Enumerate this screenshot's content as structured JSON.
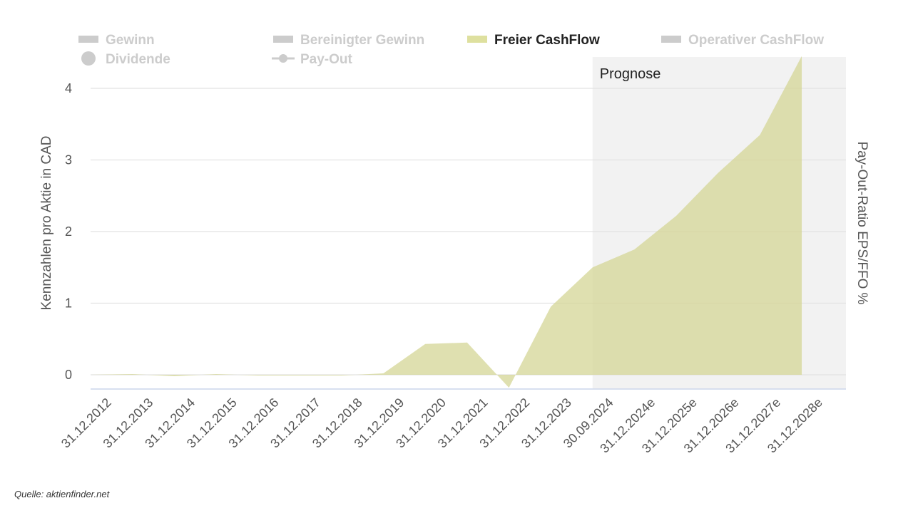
{
  "chart_data": {
    "type": "area",
    "title": "",
    "ylabel": "Kennzahlen pro Aktie in CAD",
    "ylabel_right": "Pay-Out-Ratio EPS/FFO %",
    "ylim": [
      -0.2,
      4.4
    ],
    "yticks": [
      0,
      1,
      2,
      3,
      4
    ],
    "grid": true,
    "legend_position": "top",
    "forecast_label": "Prognose",
    "forecast_start": "30.09.2024",
    "categories": [
      "31.12.2012",
      "31.12.2013",
      "31.12.2014",
      "31.12.2015",
      "31.12.2016",
      "31.12.2017",
      "31.12.2018",
      "31.12.2019",
      "31.12.2020",
      "31.12.2021",
      "31.12.2022",
      "31.12.2023",
      "30.09.2024",
      "31.12.2024e",
      "31.12.2025e",
      "31.12.2026e",
      "31.12.2027e",
      "31.12.2028e"
    ],
    "legend": [
      {
        "name": "Gewinn",
        "active": false,
        "symbol": "bar"
      },
      {
        "name": "Bereinigter Gewinn",
        "active": false,
        "symbol": "bar"
      },
      {
        "name": "Freier CashFlow",
        "active": true,
        "symbol": "bar"
      },
      {
        "name": "Operativer CashFlow",
        "active": false,
        "symbol": "bar"
      },
      {
        "name": "Dividende",
        "active": false,
        "symbol": "circle"
      },
      {
        "name": "Pay-Out",
        "active": false,
        "symbol": "line-marker"
      }
    ],
    "series": [
      {
        "name": "Freier CashFlow",
        "values": [
          0.0,
          0.01,
          -0.02,
          0.01,
          -0.01,
          -0.01,
          -0.01,
          0.02,
          0.43,
          0.45,
          -0.18,
          0.95,
          1.5,
          1.75,
          2.22,
          2.82,
          3.35,
          4.45
        ]
      }
    ],
    "colors": {
      "area": "#d4d696",
      "area_stroke": "#c9cc80",
      "forecast_band": "#f2f2f2",
      "grid": "#e2e2e2",
      "legend_active": "#222222",
      "legend_inactive": "#cccccc",
      "legend_symbol_active": "#dee09f"
    }
  },
  "source": "Quelle: aktienfinder.net"
}
